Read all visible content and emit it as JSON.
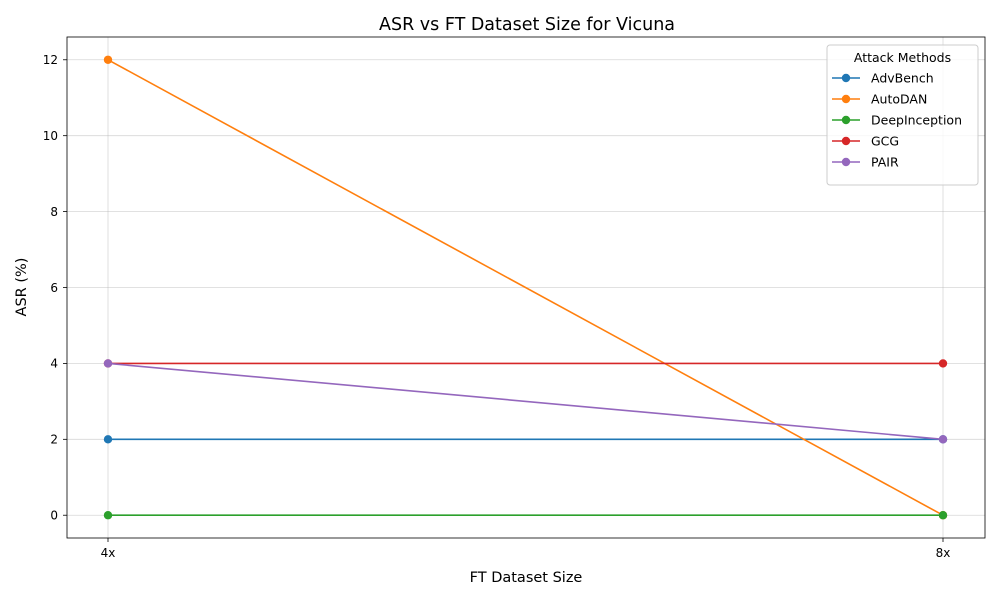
{
  "chart_data": {
    "type": "line",
    "title": "ASR vs FT Dataset Size for Vicuna",
    "xlabel": "FT Dataset Size",
    "ylabel": "ASR (%)",
    "categories": [
      "4x",
      "8x"
    ],
    "ylim": [
      -0.6,
      12.6
    ],
    "yticks": [
      0,
      2,
      4,
      6,
      8,
      10,
      12
    ],
    "grid": true,
    "legend": {
      "title": "Attack Methods",
      "placement": "top-right"
    },
    "series": [
      {
        "name": "AdvBench",
        "color": "#1f77b4",
        "values": [
          2,
          2
        ]
      },
      {
        "name": "AutoDAN",
        "color": "#ff7f0e",
        "values": [
          12,
          0
        ]
      },
      {
        "name": "DeepInception",
        "color": "#2ca02c",
        "values": [
          0,
          0
        ]
      },
      {
        "name": "GCG",
        "color": "#d62728",
        "values": [
          4,
          4
        ]
      },
      {
        "name": "PAIR",
        "color": "#9467bd",
        "values": [
          4,
          2
        ]
      }
    ]
  }
}
